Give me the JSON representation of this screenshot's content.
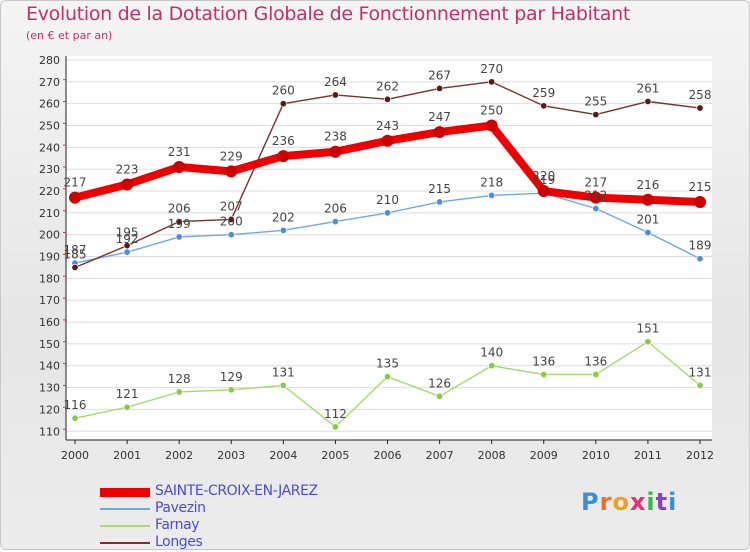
{
  "header": {
    "title": "Evolution de la Dotation Globale de Fonctionnement par Habitant",
    "subtitle": "(en € et par an)"
  },
  "logo": {
    "text": "Proxiti",
    "letter_colors": [
      "#3a8fd8",
      "#e8702a",
      "#f0a020",
      "#e83070",
      "#40b848",
      "#9040c8",
      "#3a8fd8"
    ]
  },
  "chart_data": {
    "type": "line",
    "title": "Evolution de la Dotation Globale de Fonctionnement par Habitant",
    "subtitle": "(en € et par an)",
    "xlabel": "",
    "ylabel": "",
    "x": [
      "2000",
      "2001",
      "2002",
      "2003",
      "2004",
      "2005",
      "2006",
      "2007",
      "2008",
      "2009",
      "2010",
      "2011",
      "2012"
    ],
    "yticks": [
      110,
      120,
      130,
      140,
      150,
      160,
      170,
      180,
      190,
      200,
      210,
      220,
      230,
      240,
      250,
      260,
      270,
      280
    ],
    "ylim": [
      106,
      280
    ],
    "grid": "horizontal",
    "legend_position": "bottom-left",
    "series": [
      {
        "name": "SAINTE-CROIX-EN-JAREZ",
        "color": "#ee0000",
        "marker_color": "#cc0000",
        "values": [
          217,
          223,
          231,
          229,
          236,
          238,
          243,
          247,
          250,
          220,
          217,
          216,
          215
        ]
      },
      {
        "name": "Pavezin",
        "color": "#6fa8dc",
        "marker_color": "#4a90d9",
        "values": [
          187,
          192,
          199,
          200,
          202,
          206,
          210,
          215,
          218,
          219,
          212,
          201,
          189
        ],
        "labels": [
          "187",
          "192",
          "199",
          "200",
          "202",
          "206",
          "210",
          "215",
          "218",
          "219",
          "212",
          "201",
          "189"
        ]
      },
      {
        "name": "Farnay",
        "color": "#a8d870",
        "marker_color": "#88cc44",
        "values": [
          116,
          121,
          128,
          129,
          131,
          112,
          135,
          126,
          140,
          136,
          136,
          151,
          131
        ]
      },
      {
        "name": "Longes",
        "color": "#7a3030",
        "marker_color": "#5a1a1a",
        "values": [
          185,
          195,
          206,
          207,
          260,
          264,
          262,
          267,
          270,
          259,
          255,
          261,
          258
        ]
      }
    ]
  }
}
